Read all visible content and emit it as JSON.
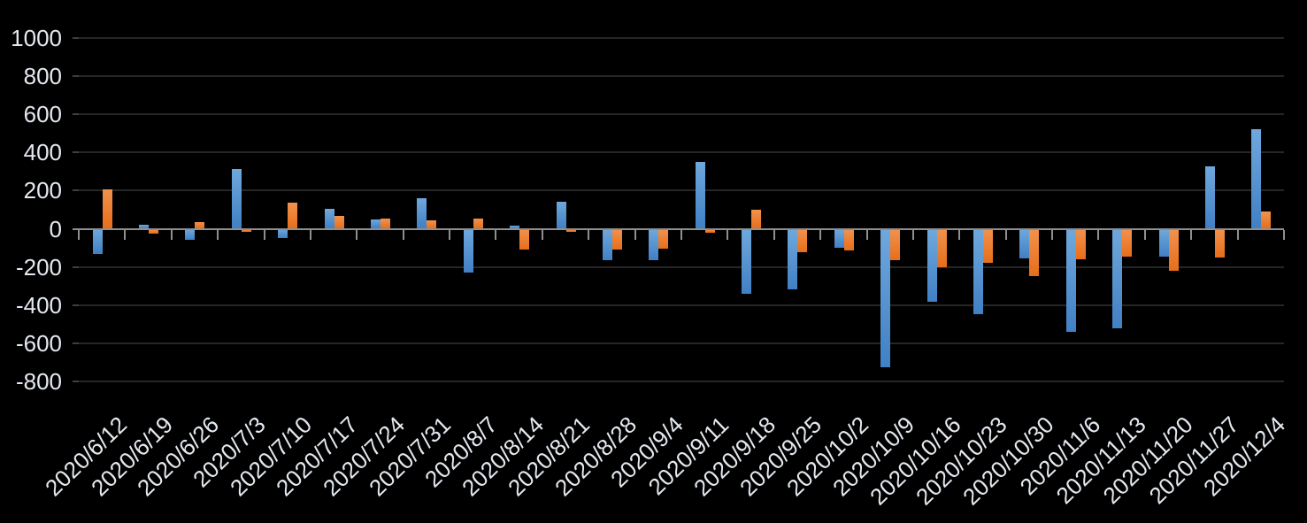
{
  "chart_data": {
    "type": "bar",
    "grid": "horizontal",
    "legend": "none",
    "background": "#000000",
    "gridline_color": "#262626",
    "axis_color": "#8F8F8F",
    "label_color": "#E4E9F0",
    "ylim": [
      -800,
      1000
    ],
    "y_tick_step": 200,
    "y_tick_labels": [
      "1000",
      "800",
      "600",
      "400",
      "200",
      "0",
      "-200",
      "-400",
      "-600",
      "-800"
    ],
    "categories": [
      "2020/6/12",
      "2020/6/19",
      "2020/6/26",
      "2020/7/3",
      "2020/7/10",
      "2020/7/17",
      "2020/7/24",
      "2020/7/31",
      "2020/8/7",
      "2020/8/14",
      "2020/8/21",
      "2020/8/28",
      "2020/9/4",
      "2020/9/11",
      "2020/9/18",
      "2020/9/25",
      "2020/10/2",
      "2020/10/9",
      "2020/10/16",
      "2020/10/23",
      "2020/10/30",
      "2020/11/6",
      "2020/11/13",
      "2020/11/20",
      "2020/11/27",
      "2020/12/4"
    ],
    "series": [
      {
        "name": "blue",
        "color_top": "#6FA8DC",
        "color_bottom": "#4080C4",
        "values": [
          -130,
          20,
          -60,
          315,
          -50,
          105,
          50,
          160,
          -230,
          15,
          140,
          -165,
          -165,
          350,
          -340,
          -320,
          -100,
          -725,
          -385,
          -450,
          -155,
          -540,
          -520,
          -145,
          325,
          520
        ]
      },
      {
        "name": "orange",
        "color_top": "#F2924E",
        "color_bottom": "#E66E1A",
        "values": [
          205,
          -25,
          35,
          -15,
          135,
          65,
          55,
          45,
          55,
          -110,
          -15,
          -110,
          -105,
          -20,
          100,
          -125,
          -115,
          -165,
          -200,
          -180,
          -250,
          -160,
          -145,
          -220,
          -150,
          90
        ]
      }
    ]
  }
}
